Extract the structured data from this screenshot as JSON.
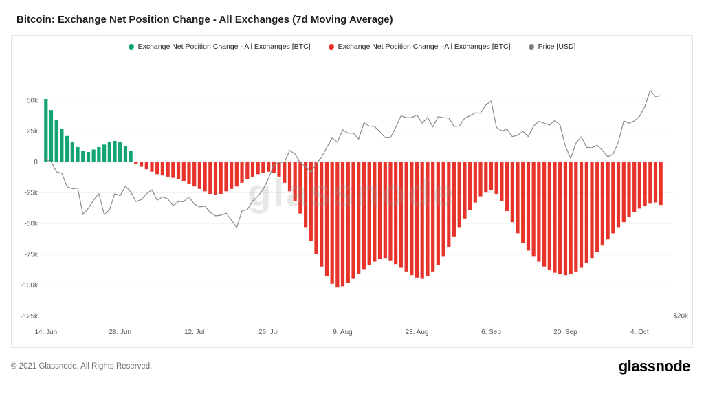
{
  "title": "Bitcoin: Exchange Net Position Change - All Exchanges (7d Moving Average)",
  "footer": {
    "copyright": "© 2021 Glassnode. All Rights Reserved.",
    "logo": "glassnode"
  },
  "chart_data": {
    "type": "bar",
    "subtype": "bar+line combo, daily values, 14 Jun 2021 - 8 Oct 2021",
    "title": "Bitcoin: Exchange Net Position Change - All Exchanges (7d Moving Average)",
    "watermark": "glassnode",
    "right_axis_label": "$20k",
    "legend": [
      {
        "label": "Exchange Net Position Change - All Exchanges [BTC]",
        "color": "#12a472"
      },
      {
        "label": "Exchange Net Position Change - All Exchanges [BTC]",
        "color": "#e8332a"
      },
      {
        "label": "Price [USD]",
        "color": "#808080"
      }
    ],
    "left_axis": [
      {
        "value": 50000,
        "label": "50k"
      },
      {
        "value": 25000,
        "label": "25k"
      },
      {
        "value": 0,
        "label": "0"
      },
      {
        "value": -25000,
        "label": "-25k"
      },
      {
        "value": -50000,
        "label": "-50k"
      },
      {
        "value": -75000,
        "label": "-75k"
      },
      {
        "value": -100000,
        "label": "-100k"
      },
      {
        "value": -125000,
        "label": "-125k"
      }
    ],
    "x_ticks": [
      {
        "index": 0,
        "label": "14. Jun"
      },
      {
        "index": 14,
        "label": "28. Jun"
      },
      {
        "index": 28,
        "label": "12. Jul"
      },
      {
        "index": 42,
        "label": "26. Jul"
      },
      {
        "index": 56,
        "label": "9. Aug"
      },
      {
        "index": 70,
        "label": "23. Aug"
      },
      {
        "index": 84,
        "label": "6. Sep"
      },
      {
        "index": 98,
        "label": "20. Sep"
      },
      {
        "index": 112,
        "label": "4. Oct"
      }
    ],
    "series": [
      {
        "name": "Exchange Net Position Change - All Exchanges [BTC]",
        "type": "bar",
        "color_positive": "#12a472",
        "color_negative": "#e8332a",
        "values": [
          51000,
          42000,
          34000,
          27000,
          21000,
          16000,
          12000,
          9000,
          8000,
          10000,
          12000,
          14000,
          16000,
          17000,
          16000,
          13000,
          9000,
          -2000,
          -4000,
          -6000,
          -8000,
          -10000,
          -11000,
          -12000,
          -13000,
          -14000,
          -16000,
          -18000,
          -20000,
          -22000,
          -24000,
          -26000,
          -27000,
          -26000,
          -24000,
          -22000,
          -20000,
          -17000,
          -14000,
          -12000,
          -10000,
          -9000,
          -8000,
          -9000,
          -12000,
          -17000,
          -24000,
          -32000,
          -42000,
          -53000,
          -64000,
          -75000,
          -85000,
          -93000,
          -99000,
          -102000,
          -101000,
          -98000,
          -95000,
          -91000,
          -87000,
          -84000,
          -81000,
          -79000,
          -78000,
          -80000,
          -83000,
          -86000,
          -89000,
          -92000,
          -94000,
          -95000,
          -93000,
          -89000,
          -84000,
          -77000,
          -69000,
          -61000,
          -53000,
          -46000,
          -39000,
          -33000,
          -28000,
          -25000,
          -23000,
          -26000,
          -32000,
          -40000,
          -49000,
          -58000,
          -66000,
          -72000,
          -77000,
          -81000,
          -85000,
          -88000,
          -90000,
          -91000,
          -92000,
          -91000,
          -89000,
          -86000,
          -82000,
          -78000,
          -73000,
          -68000,
          -63000,
          -58000,
          -53000,
          -49000,
          -45000,
          -41000,
          -38000,
          -36000,
          -34000,
          -33000,
          -35000
        ]
      },
      {
        "name": "Price [USD]",
        "type": "line",
        "color": "#8a8a8a",
        "unit": "USD thousands, log scale, $20k at bottom gridline",
        "values": [
          40.5,
          40.1,
          38.3,
          38.1,
          35.8,
          35.5,
          35.6,
          31.6,
          32.5,
          33.7,
          34.7,
          31.6,
          32.3,
          34.7,
          34.4,
          35.9,
          35.0,
          33.5,
          33.8,
          34.7,
          35.3,
          33.7,
          34.2,
          33.9,
          32.9,
          33.5,
          33.5,
          34.2,
          33.1,
          32.7,
          32.8,
          31.9,
          31.4,
          31.5,
          31.8,
          30.8,
          29.8,
          32.1,
          32.3,
          33.6,
          34.3,
          35.4,
          37.2,
          39.5,
          40.0,
          40.0,
          42.2,
          41.5,
          39.9,
          39.2,
          38.2,
          39.7,
          40.9,
          42.8,
          44.6,
          43.8,
          46.3,
          45.6,
          45.6,
          44.4,
          47.8,
          47.1,
          47.0,
          45.9,
          44.7,
          44.7,
          46.8,
          49.3,
          48.9,
          48.9,
          49.5,
          47.7,
          49.0,
          46.9,
          49.1,
          48.9,
          48.8,
          47.0,
          47.1,
          48.8,
          49.3,
          50.0,
          49.9,
          51.8,
          52.7,
          46.8,
          46.1,
          46.4,
          44.9,
          45.2,
          46.0,
          44.9,
          47.1,
          48.1,
          47.7,
          47.3,
          48.3,
          47.3,
          43.0,
          40.7,
          43.6,
          44.9,
          42.8,
          42.7,
          43.2,
          42.2,
          41.0,
          41.5,
          43.8,
          48.2,
          47.7,
          48.2,
          49.2,
          51.5,
          55.3,
          53.8,
          54.0
        ]
      }
    ]
  }
}
